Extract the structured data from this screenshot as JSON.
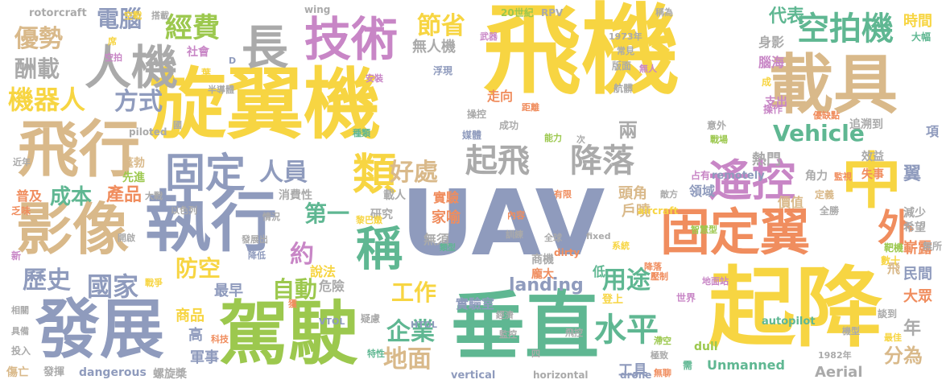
{
  "colors": {
    "yellow": "#f7d542",
    "slate": "#8f9bbd",
    "teal": "#5fb792",
    "green": "#9cc84e",
    "orange": "#f08d5e",
    "purple": "#c886c6",
    "tan": "#d9b98a",
    "gray": "#aaaaaa",
    "background": "#ffffff"
  },
  "words": [
    {
      "text": "飛機",
      "color": "yellow"
    },
    {
      "text": "旋翼機",
      "color": "yellow"
    },
    {
      "text": "UAV",
      "color": "slate"
    },
    {
      "text": "起降",
      "color": "yellow"
    },
    {
      "text": "垂直",
      "color": "teal"
    },
    {
      "text": "駕駛",
      "color": "green"
    },
    {
      "text": "執行",
      "color": "slate"
    },
    {
      "text": "發展",
      "color": "slate"
    },
    {
      "text": "載具",
      "color": "tan"
    },
    {
      "text": "飛行",
      "color": "tan"
    },
    {
      "text": "影像",
      "color": "tan"
    },
    {
      "text": "固定翼",
      "color": "orange"
    },
    {
      "text": "技術",
      "color": "purple"
    },
    {
      "text": "人機",
      "color": "gray"
    },
    {
      "text": "長",
      "color": "gray"
    },
    {
      "text": "中",
      "color": "yellow"
    },
    {
      "text": "遙控",
      "color": "purple"
    },
    {
      "text": "固定",
      "color": "slate"
    },
    {
      "text": "類",
      "color": "yellow"
    },
    {
      "text": "稱",
      "color": "teal"
    },
    {
      "text": "空拍機",
      "color": "teal"
    },
    {
      "text": "起飛",
      "color": "gray"
    },
    {
      "text": "降落",
      "color": "gray"
    },
    {
      "text": "水平",
      "color": "teal"
    },
    {
      "text": "節省",
      "color": "yellow"
    },
    {
      "text": "經費",
      "color": "green"
    },
    {
      "text": "電腦",
      "color": "slate"
    },
    {
      "text": "優勢",
      "color": "tan"
    },
    {
      "text": "酬載",
      "color": "gray"
    },
    {
      "text": "機器人",
      "color": "yellow"
    },
    {
      "text": "方式",
      "color": "slate"
    },
    {
      "text": "歷史",
      "color": "slate"
    },
    {
      "text": "國家",
      "color": "slate"
    },
    {
      "text": "成本",
      "color": "teal"
    },
    {
      "text": "產品",
      "color": "orange"
    },
    {
      "text": "防空",
      "color": "yellow"
    },
    {
      "text": "人員",
      "color": "slate"
    },
    {
      "text": "好處",
      "color": "tan"
    },
    {
      "text": "Vehicle",
      "color": "teal"
    },
    {
      "text": "外",
      "color": "orange"
    },
    {
      "text": "自動",
      "color": "green"
    },
    {
      "text": "工作",
      "color": "yellow"
    },
    {
      "text": "企業",
      "color": "teal"
    },
    {
      "text": "地面",
      "color": "tan"
    },
    {
      "text": "用途",
      "color": "teal"
    },
    {
      "text": "landing",
      "color": "slate"
    },
    {
      "text": "第一",
      "color": "teal"
    },
    {
      "text": "約",
      "color": "purple"
    },
    {
      "text": "分為",
      "color": "tan"
    },
    {
      "text": "代表",
      "color": "teal"
    },
    {
      "text": "時間",
      "color": "yellow"
    },
    {
      "text": "無人機",
      "color": "gray"
    },
    {
      "text": "兩",
      "color": "gray"
    },
    {
      "text": "Unmanned",
      "color": "teal"
    },
    {
      "text": "Aerial",
      "color": "gray"
    },
    {
      "text": "年",
      "color": "gray"
    },
    {
      "text": "翼",
      "color": "slate"
    },
    {
      "text": "實驗",
      "color": "orange"
    },
    {
      "text": "家喻",
      "color": "orange"
    },
    {
      "text": "說法",
      "color": "yellow"
    },
    {
      "text": "危險",
      "color": "gray"
    },
    {
      "text": "無須",
      "color": "gray"
    },
    {
      "text": "實驗室",
      "color": "slate"
    },
    {
      "text": "最早",
      "color": "slate"
    },
    {
      "text": "商品",
      "color": "yellow"
    },
    {
      "text": "高",
      "color": "slate"
    },
    {
      "text": "軍事",
      "color": "slate"
    },
    {
      "text": "工具",
      "color": "slate"
    },
    {
      "text": "低",
      "color": "teal"
    },
    {
      "text": "走向",
      "color": "orange"
    },
    {
      "text": "消費性",
      "color": "gray"
    },
    {
      "text": "載人",
      "color": "gray"
    },
    {
      "text": "研究",
      "color": "gray"
    },
    {
      "text": "頭角",
      "color": "tan"
    },
    {
      "text": "熱門",
      "color": "gray"
    },
    {
      "text": "戶曉",
      "color": "tan"
    },
    {
      "text": "普及",
      "color": "orange"
    },
    {
      "text": "蓬勃",
      "color": "tan"
    },
    {
      "text": "先進",
      "color": "green"
    },
    {
      "text": "嶄露",
      "color": "orange"
    },
    {
      "text": "民間",
      "color": "slate"
    },
    {
      "text": "大眾",
      "color": "orange"
    },
    {
      "text": "項",
      "color": "slate"
    },
    {
      "text": "身影",
      "color": "gray"
    },
    {
      "text": "腦海",
      "color": "purple"
    },
    {
      "text": "支出",
      "color": "purple"
    },
    {
      "text": "領域",
      "color": "slate"
    },
    {
      "text": "效益",
      "color": "gray"
    },
    {
      "text": "追溯到",
      "color": "gray"
    },
    {
      "text": "失事",
      "color": "orange"
    },
    {
      "text": "減少",
      "color": "gray"
    },
    {
      "text": "希望",
      "color": "gray"
    },
    {
      "text": "飛",
      "color": "tan"
    },
    {
      "text": "靶機",
      "color": "green"
    },
    {
      "text": "數十",
      "color": "yellow"
    },
    {
      "text": "價值",
      "color": "tan"
    },
    {
      "text": "角力",
      "color": "gray"
    },
    {
      "text": "定義",
      "color": "tan"
    },
    {
      "text": "全勝",
      "color": "gray"
    },
    {
      "text": "商機",
      "color": "gray"
    },
    {
      "text": "龐大",
      "color": "orange"
    },
    {
      "text": "社會",
      "color": "purple"
    },
    {
      "text": "dirty",
      "color": "orange"
    },
    {
      "text": "dull",
      "color": "green"
    },
    {
      "text": "dangerous",
      "color": "slate"
    },
    {
      "text": "螺旋槳",
      "color": "gray"
    },
    {
      "text": "發揮",
      "color": "gray"
    },
    {
      "text": "傷亡",
      "color": "tan"
    },
    {
      "text": "投入",
      "color": "gray"
    },
    {
      "text": "具備",
      "color": "gray"
    },
    {
      "text": "相關",
      "color": "gray"
    },
    {
      "text": "新",
      "color": "purple"
    },
    {
      "text": "乏味",
      "color": "orange"
    },
    {
      "text": "開啟",
      "color": "gray"
    },
    {
      "text": "以色列",
      "color": "gray"
    },
    {
      "text": "大戰",
      "color": "gray"
    },
    {
      "text": "近年",
      "color": "gray"
    },
    {
      "text": "rotorcraft",
      "color": "gray"
    },
    {
      "text": "wing",
      "color": "gray"
    },
    {
      "text": "piloted",
      "color": "gray"
    },
    {
      "text": "remotely",
      "color": "slate"
    },
    {
      "text": "fixed",
      "color": "gray"
    },
    {
      "text": "aircraft",
      "color": "yellow"
    },
    {
      "text": "HTOL",
      "color": "slate"
    },
    {
      "text": "VTOL",
      "color": "slate"
    },
    {
      "text": "autopilot",
      "color": "teal"
    },
    {
      "text": "vertical",
      "color": "slate"
    },
    {
      "text": "horizontal",
      "color": "gray"
    },
    {
      "text": "drone",
      "color": "slate"
    },
    {
      "text": "RPV",
      "color": "gray"
    },
    {
      "text": "20世紀",
      "color": "green"
    },
    {
      "text": "1973年",
      "color": "gray"
    },
    {
      "text": "1982年",
      "color": "gray"
    },
    {
      "text": "空戰",
      "color": "yellow"
    },
    {
      "text": "搭載",
      "color": "gray"
    },
    {
      "text": "席",
      "color": "yellow"
    },
    {
      "text": "空拍",
      "color": "purple"
    },
    {
      "text": "葉",
      "color": "yellow"
    },
    {
      "text": "D",
      "color": "slate"
    },
    {
      "text": "半導體",
      "color": "gray"
    },
    {
      "text": "安裝",
      "color": "purple"
    },
    {
      "text": "浮現",
      "color": "slate"
    },
    {
      "text": "武器",
      "color": "purple"
    },
    {
      "text": "常見",
      "color": "gray"
    },
    {
      "text": "版面",
      "color": "gray"
    },
    {
      "text": "無人",
      "color": "purple"
    },
    {
      "text": "航髒",
      "color": "gray"
    },
    {
      "text": "稱為",
      "color": "gray"
    },
    {
      "text": "大幅",
      "color": "teal"
    },
    {
      "text": "成",
      "color": "yellow"
    },
    {
      "text": "距離",
      "color": "orange"
    },
    {
      "text": "操控",
      "color": "gray"
    },
    {
      "text": "成功",
      "color": "gray"
    },
    {
      "text": "媒體",
      "color": "slate"
    },
    {
      "text": "次",
      "color": "gray"
    },
    {
      "text": "能力",
      "color": "green"
    },
    {
      "text": "種類",
      "color": "teal"
    },
    {
      "text": "國",
      "color": "gray"
    },
    {
      "text": "意外",
      "color": "gray"
    },
    {
      "text": "戰場",
      "color": "green"
    },
    {
      "text": "操作",
      "color": "purple"
    },
    {
      "text": "優缺點",
      "color": "orange"
    },
    {
      "text": "監視",
      "color": "orange"
    },
    {
      "text": "占有",
      "color": "purple"
    },
    {
      "text": "敵方",
      "color": "gray"
    },
    {
      "text": "有限",
      "color": "orange"
    },
    {
      "text": "內容",
      "color": "orange"
    },
    {
      "text": "情況",
      "color": "gray"
    },
    {
      "text": "發展出",
      "color": "gray"
    },
    {
      "text": "黎巴嫩",
      "color": "yellow"
    },
    {
      "text": "類型",
      "color": "teal"
    },
    {
      "text": "訓練",
      "color": "gray"
    },
    {
      "text": "全球",
      "color": "gray"
    },
    {
      "text": "系統",
      "color": "yellow"
    },
    {
      "text": "智慧型",
      "color": "green"
    },
    {
      "text": "戰爭",
      "color": "yellow"
    },
    {
      "text": "獲",
      "color": "orange"
    },
    {
      "text": "疑慮",
      "color": "gray"
    },
    {
      "text": "經濟",
      "color": "gray"
    },
    {
      "text": "監控",
      "color": "gray"
    },
    {
      "text": "飛控",
      "color": "gray"
    },
    {
      "text": "降落",
      "color": "orange"
    },
    {
      "text": "登上",
      "color": "yellow"
    },
    {
      "text": "世界",
      "color": "purple"
    },
    {
      "text": "地面站",
      "color": "purple"
    },
    {
      "text": "壓制",
      "color": "orange"
    },
    {
      "text": "科技",
      "color": "orange"
    },
    {
      "text": "談到",
      "color": "gray"
    },
    {
      "text": "無所",
      "color": "gray"
    },
    {
      "text": "機型",
      "color": "gray"
    },
    {
      "text": "最佳",
      "color": "yellow"
    },
    {
      "text": "極致",
      "color": "gray"
    },
    {
      "text": "滯空",
      "color": "green"
    },
    {
      "text": "無聊",
      "color": "orange"
    },
    {
      "text": "需",
      "color": "teal"
    },
    {
      "text": "四",
      "color": "gray"
    },
    {
      "text": "特性",
      "color": "teal"
    },
    {
      "text": "降低",
      "color": "slate"
    }
  ]
}
